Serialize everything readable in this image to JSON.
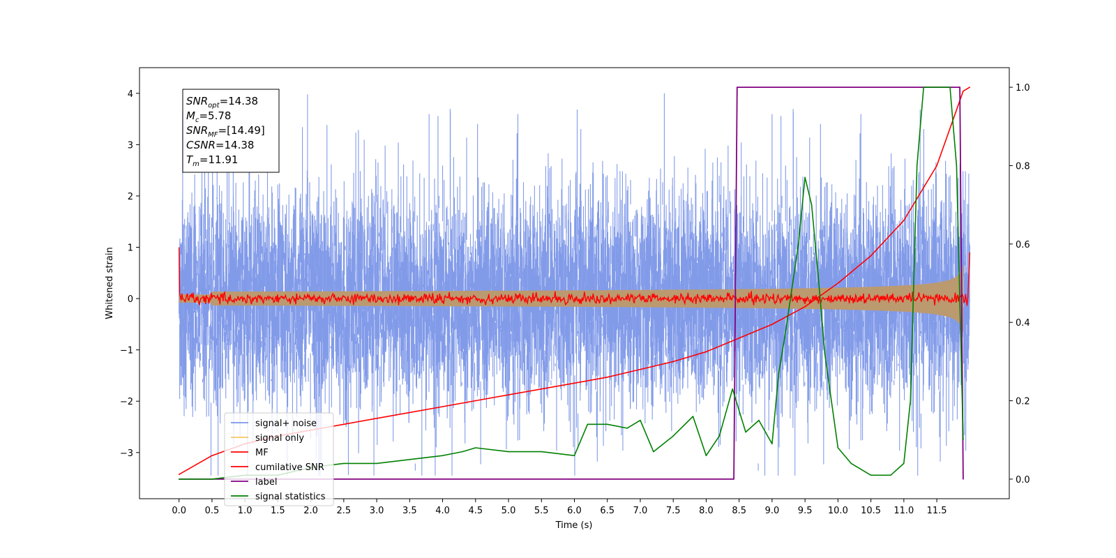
{
  "chart_data": {
    "type": "line",
    "title": "",
    "xlabel": "Time (s)",
    "ylabel": "Whitened strain",
    "xlim": [
      -0.6,
      12.6
    ],
    "ylim": [
      -3.9,
      4.5
    ],
    "y2lim": [
      -0.05,
      1.05
    ],
    "x_ticks": [
      0.0,
      0.5,
      1.0,
      1.5,
      2.0,
      2.5,
      3.0,
      3.5,
      4.0,
      4.5,
      5.0,
      5.5,
      6.0,
      6.5,
      7.0,
      7.5,
      8.0,
      8.5,
      9.0,
      9.5,
      10.0,
      10.5,
      11.0,
      11.5
    ],
    "x_tick_labels": [
      "0.0",
      "0.5",
      "1.0",
      "1.5",
      "2.0",
      "2.5",
      "3.0",
      "3.5",
      "4.0",
      "4.5",
      "5.0",
      "5.5",
      "6.0",
      "6.5",
      "7.0",
      "7.5",
      "8.0",
      "8.5",
      "9.0",
      "9.5",
      "10.0",
      "10.5",
      "11.0",
      "11.5"
    ],
    "y_ticks": [
      -3,
      -2,
      -1,
      0,
      1,
      2,
      3,
      4
    ],
    "y_tick_labels": [
      "−3",
      "−2",
      "−1",
      "0",
      "1",
      "2",
      "3",
      "4"
    ],
    "y2_ticks": [
      0.0,
      0.2,
      0.4,
      0.6,
      0.8,
      1.0
    ],
    "y2_tick_labels": [
      "0.0",
      "0.2",
      "0.4",
      "0.6",
      "0.8",
      "1.0"
    ],
    "grid": false,
    "legend_position": "bottom-left",
    "annotation": {
      "lines": [
        {
          "var": "SNR",
          "sub": "opt",
          "value": "=14.38"
        },
        {
          "var": "M",
          "sub": "c",
          "value": "=5.78"
        },
        {
          "var": "SNR",
          "sub": "MF",
          "value": "=[14.49]"
        },
        {
          "var": "CSNR",
          "sub": "",
          "value": "=14.38"
        },
        {
          "var": "T",
          "sub": "m",
          "value": "=11.91"
        }
      ]
    },
    "series": [
      {
        "name": "signal+ noise",
        "color": "#7b96e8",
        "axis": "left",
        "description": "noisy whitened strain, amplitude ~±2.5, peaks to ±4.2",
        "x_range": [
          0.0,
          12.0
        ]
      },
      {
        "name": "signal only",
        "color": "#f5c66b",
        "axis": "left",
        "description": "chirp envelope growing from ~0.02 to ~0.8 near merger",
        "x_range": [
          0.0,
          11.91
        ]
      },
      {
        "name": "MF",
        "color": "#ff0000",
        "axis": "left",
        "description": "matched-filter output, near 0 with small noise, spikes at ends",
        "x_range": [
          0.0,
          12.0
        ]
      },
      {
        "name": "cumilative SNR",
        "color": "#ff0000",
        "axis": "right",
        "x": [
          0.0,
          0.5,
          1.0,
          1.5,
          2.0,
          2.5,
          3.0,
          3.5,
          4.0,
          4.5,
          5.0,
          5.5,
          6.0,
          6.5,
          7.0,
          7.5,
          8.0,
          8.5,
          9.0,
          9.5,
          10.0,
          10.5,
          11.0,
          11.5,
          11.9,
          12.0
        ],
        "values": [
          0.012,
          0.06,
          0.09,
          0.11,
          0.125,
          0.14,
          0.155,
          0.17,
          0.185,
          0.2,
          0.215,
          0.23,
          0.245,
          0.26,
          0.28,
          0.3,
          0.325,
          0.36,
          0.395,
          0.44,
          0.5,
          0.57,
          0.66,
          0.8,
          0.99,
          1.0
        ]
      },
      {
        "name": "label",
        "color": "#800080",
        "axis": "right",
        "x": [
          0.0,
          8.42,
          8.47,
          11.85,
          11.9
        ],
        "values": [
          0.0,
          0.0,
          1.0,
          1.0,
          0.0
        ]
      },
      {
        "name": "signal statistics",
        "color": "#008000",
        "axis": "right",
        "x": [
          0.0,
          0.5,
          1.0,
          1.5,
          2.0,
          2.5,
          3.0,
          3.5,
          4.0,
          4.3,
          4.5,
          5.0,
          5.5,
          6.0,
          6.2,
          6.5,
          6.8,
          7.0,
          7.2,
          7.5,
          7.8,
          8.0,
          8.2,
          8.4,
          8.6,
          8.8,
          9.0,
          9.1,
          9.2,
          9.4,
          9.5,
          9.6,
          9.7,
          9.8,
          10.0,
          10.2,
          10.5,
          10.8,
          11.0,
          11.1,
          11.2,
          11.3,
          11.5,
          11.7,
          11.8,
          11.9
        ],
        "values": [
          0.0,
          0.0,
          0.01,
          0.01,
          0.03,
          0.04,
          0.04,
          0.05,
          0.06,
          0.07,
          0.08,
          0.07,
          0.07,
          0.06,
          0.14,
          0.14,
          0.13,
          0.15,
          0.07,
          0.11,
          0.16,
          0.06,
          0.11,
          0.23,
          0.12,
          0.15,
          0.09,
          0.27,
          0.37,
          0.6,
          0.77,
          0.7,
          0.52,
          0.32,
          0.08,
          0.04,
          0.01,
          0.01,
          0.04,
          0.2,
          0.8,
          1.0,
          1.0,
          1.0,
          0.8,
          0.1
        ]
      }
    ]
  },
  "legend": {
    "items": [
      {
        "label": "signal+ noise",
        "color": "#7b96e8"
      },
      {
        "label": "signal only",
        "color": "#f5c66b"
      },
      {
        "label": "MF",
        "color": "#ff0000"
      },
      {
        "label": "cumilative SNR",
        "color": "#ff0000"
      },
      {
        "label": "label",
        "color": "#800080"
      },
      {
        "label": "signal statistics",
        "color": "#008000"
      }
    ]
  },
  "colors": {
    "noise": "#7b96e8",
    "signal": "#f5c66b",
    "signal_overlap": "#bb9a70",
    "mf": "#ff0000",
    "csnr": "#ff0000",
    "label": "#800080",
    "stat": "#008000"
  }
}
